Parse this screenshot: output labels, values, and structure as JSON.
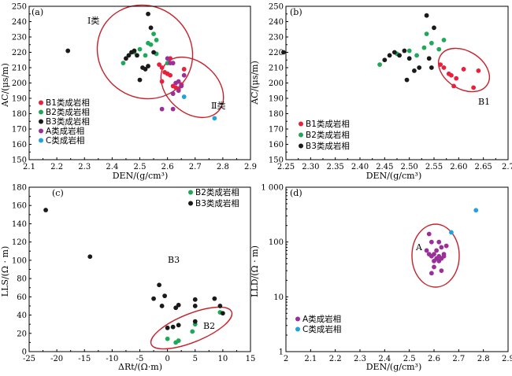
{
  "colors": {
    "B1": "#e8203c",
    "B2": "#1fa85a",
    "B3": "#1a1a1a",
    "A": "#9b2f9a",
    "C": "#21a3de",
    "ellipse": "#c8202a"
  },
  "chart_data": [
    {
      "id": "a",
      "type": "scatter",
      "panel_label": "(a)",
      "xlabel": "DEN/(g/cm³)",
      "ylabel": "AC/(μs/m)",
      "xlim": [
        2.1,
        2.9
      ],
      "ylim": [
        150,
        250
      ],
      "xticks": [
        "2.1",
        "2.2",
        "2.3",
        "2.4",
        "2.5",
        "2.6",
        "2.7",
        "2.8",
        "2.9"
      ],
      "yticks": [
        "150",
        "160",
        "170",
        "180",
        "190",
        "200",
        "210",
        "220",
        "230",
        "240",
        "250"
      ],
      "legend_position": "bottom-left",
      "annotations": [
        "Ⅰ类",
        "Ⅱ类"
      ],
      "series": [
        {
          "name": "B1类成岩相",
          "key": "B1",
          "points": [
            [
              2.57,
              212
            ],
            [
              2.58,
              210
            ],
            [
              2.59,
              207
            ],
            [
              2.6,
              206
            ],
            [
              2.61,
              205
            ],
            [
              2.62,
              198
            ],
            [
              2.63,
              197
            ],
            [
              2.64,
              196
            ],
            [
              2.65,
              199
            ],
            [
              2.66,
              209
            ],
            [
              2.61,
              216
            ],
            [
              2.58,
              201
            ]
          ]
        },
        {
          "name": "B2类成岩相",
          "key": "B2",
          "points": [
            [
              2.44,
              213
            ],
            [
              2.48,
              220
            ],
            [
              2.5,
              222
            ],
            [
              2.52,
              218
            ],
            [
              2.53,
              226
            ],
            [
              2.54,
              225
            ],
            [
              2.55,
              232
            ],
            [
              2.56,
              228
            ],
            [
              2.56,
              219
            ],
            [
              2.6,
              213
            ]
          ]
        },
        {
          "name": "B3类成岩相",
          "key": "B3",
          "points": [
            [
              2.24,
              221
            ],
            [
              2.45,
              216
            ],
            [
              2.46,
              218
            ],
            [
              2.47,
              220
            ],
            [
              2.48,
              221
            ],
            [
              2.49,
              218
            ],
            [
              2.5,
              202
            ],
            [
              2.51,
              210
            ],
            [
              2.52,
              209
            ],
            [
              2.53,
              211
            ],
            [
              2.53,
              245
            ],
            [
              2.54,
              236
            ],
            [
              2.55,
              220
            ]
          ]
        },
        {
          "name": "A类成岩相",
          "key": "A",
          "points": [
            [
              2.58,
              183
            ],
            [
              2.6,
              216
            ],
            [
              2.61,
              213
            ],
            [
              2.62,
              183
            ],
            [
              2.62,
              193
            ],
            [
              2.63,
              200
            ],
            [
              2.64,
              195
            ],
            [
              2.64,
              201
            ],
            [
              2.65,
              198
            ],
            [
              2.66,
              205
            ],
            [
              2.62,
              213
            ]
          ]
        },
        {
          "name": "C类成岩相",
          "key": "C",
          "points": [
            [
              2.66,
              191
            ],
            [
              2.77,
              177
            ]
          ]
        }
      ]
    },
    {
      "id": "b",
      "type": "scatter",
      "panel_label": "(b)",
      "xlabel": "DEN/(g/cm³)",
      "ylabel": "AC/(μs/m)",
      "xlim": [
        2.25,
        2.7
      ],
      "ylim": [
        150,
        250
      ],
      "xticks": [
        "2.25",
        "2.30",
        "2.35",
        "2.40",
        "2.45",
        "2.50",
        "2.55",
        "2.60",
        "2.65",
        "2.7"
      ],
      "yticks": [
        "150",
        "160",
        "170",
        "180",
        "190",
        "200",
        "210",
        "220",
        "230",
        "240",
        "250"
      ],
      "legend_position": "bottom-right",
      "annotations": [
        "B1"
      ],
      "series": [
        {
          "name": "B1类成岩相",
          "key": "B1",
          "points": [
            [
              2.563,
              212
            ],
            [
              2.57,
              210
            ],
            [
              2.58,
              206
            ],
            [
              2.585,
              205
            ],
            [
              2.59,
              198
            ],
            [
              2.61,
              209
            ],
            [
              2.63,
              197
            ],
            [
              2.64,
              208
            ],
            [
              2.595,
              203
            ]
          ]
        },
        {
          "name": "B2类成岩相",
          "key": "B2",
          "points": [
            [
              2.44,
              212
            ],
            [
              2.475,
              219
            ],
            [
              2.5,
              221
            ],
            [
              2.515,
              218
            ],
            [
              2.53,
              223
            ],
            [
              2.535,
              232
            ],
            [
              2.545,
              226
            ],
            [
              2.56,
              222
            ],
            [
              2.57,
              228
            ]
          ]
        },
        {
          "name": "B3类成岩相",
          "key": "B3",
          "points": [
            [
              2.245,
              220
            ],
            [
              2.45,
              215
            ],
            [
              2.46,
              218
            ],
            [
              2.47,
              220
            ],
            [
              2.48,
              218
            ],
            [
              2.49,
              221
            ],
            [
              2.5,
              216
            ],
            [
              2.495,
              202
            ],
            [
              2.51,
              208
            ],
            [
              2.52,
              210
            ],
            [
              2.535,
              244
            ],
            [
              2.54,
              216
            ],
            [
              2.545,
              210
            ],
            [
              2.55,
              236
            ]
          ]
        }
      ]
    },
    {
      "id": "c",
      "type": "scatter",
      "panel_label": "(c)",
      "xlabel": "ΔRt/(Ω·m)",
      "ylabel": "LLS/(Ω · m)",
      "xlim": [
        -25,
        15
      ],
      "ylim": [
        0,
        180
      ],
      "xticks": [
        "-25",
        "-20",
        "-15",
        "-10",
        "-5",
        "0",
        "5",
        "10",
        "15"
      ],
      "yticks": [
        "0",
        "20",
        "40",
        "60",
        "80",
        "100",
        "120",
        "140",
        "160",
        "180"
      ],
      "legend_position": "top-right",
      "annotations": [
        "B3",
        "B2"
      ],
      "series": [
        {
          "name": "B2类成岩相",
          "key": "B2",
          "points": [
            [
              0.0,
              14
            ],
            [
              1.5,
              10
            ],
            [
              2.0,
              12
            ],
            [
              4.5,
              22
            ],
            [
              5.0,
              30
            ],
            [
              9.5,
              43
            ]
          ]
        },
        {
          "name": "B3类成岩相",
          "key": "B3",
          "points": [
            [
              -22,
              155
            ],
            [
              -14,
              104
            ],
            [
              -2.5,
              58
            ],
            [
              -1.5,
              73
            ],
            [
              -1.0,
              50
            ],
            [
              -0.5,
              61
            ],
            [
              0.0,
              26
            ],
            [
              1.0,
              27
            ],
            [
              1.5,
              48
            ],
            [
              2.0,
              51
            ],
            [
              2.0,
              29
            ],
            [
              5.0,
              33
            ],
            [
              5.0,
              50
            ],
            [
              5.0,
              57
            ],
            [
              8.5,
              58
            ],
            [
              9.5,
              50
            ],
            [
              10.0,
              42
            ]
          ]
        }
      ]
    },
    {
      "id": "d",
      "type": "scatter",
      "panel_label": "(d)",
      "xlabel": "DEN/(g/cm³)",
      "ylabel": "LLD/(Ω · m)",
      "xlim": [
        2.0,
        2.9
      ],
      "ylim": [
        1,
        1000
      ],
      "y_scale": "log",
      "xticks": [
        "2",
        "2.1",
        "2.2",
        "2.3",
        "2.4",
        "2.5",
        "2.6",
        "2.7",
        "2.8",
        "2.9"
      ],
      "yticks": [
        "1",
        "10",
        "100",
        "1 000"
      ],
      "legend_position": "bottom-left",
      "annotations": [
        "A"
      ],
      "series": [
        {
          "name": "A类成岩相",
          "key": "A",
          "points": [
            [
              2.58,
              140
            ],
            [
              2.59,
              27
            ],
            [
              2.59,
              55
            ],
            [
              2.6,
              35
            ],
            [
              2.6,
              60
            ],
            [
              2.61,
              50
            ],
            [
              2.61,
              70
            ],
            [
              2.62,
              45
            ],
            [
              2.62,
              55
            ],
            [
              2.63,
              80
            ],
            [
              2.63,
              30
            ],
            [
              2.64,
              55
            ],
            [
              2.64,
              60
            ],
            [
              2.65,
              85
            ],
            [
              2.58,
              60
            ],
            [
              2.59,
              100
            ],
            [
              2.6,
              45
            ],
            [
              2.62,
              100
            ],
            [
              2.57,
              70
            ],
            [
              2.63,
              50
            ]
          ]
        },
        {
          "name": "C类成岩相",
          "key": "C",
          "points": [
            [
              2.67,
              150
            ],
            [
              2.77,
              380
            ]
          ]
        }
      ]
    }
  ]
}
